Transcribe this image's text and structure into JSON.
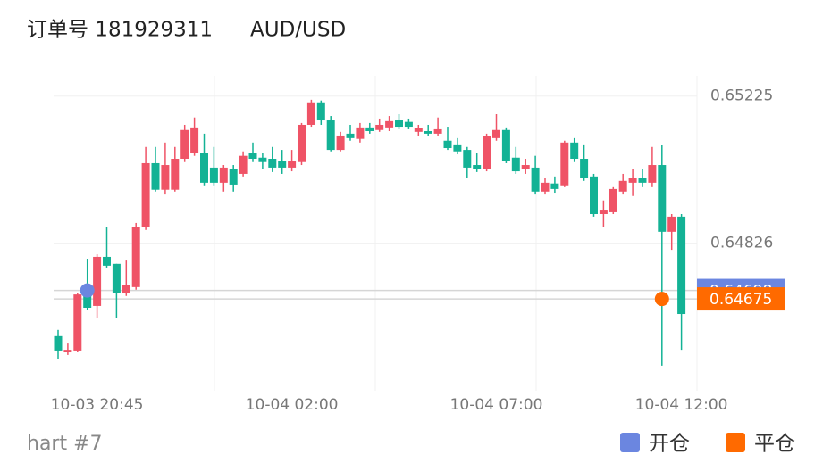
{
  "chart_data": {
    "type": "candlestick",
    "title": "订单号 181929311",
    "symbol": "AUD/USD",
    "footer": "hart #7",
    "categories": [
      null,
      null,
      null,
      null,
      "10-03 20:45",
      null,
      null,
      null,
      null,
      null,
      null,
      null,
      null,
      null,
      null,
      null,
      null,
      null,
      null,
      null,
      null,
      null,
      null,
      null,
      "10-04 02:00",
      null,
      null,
      null,
      null,
      null,
      null,
      null,
      null,
      null,
      null,
      null,
      null,
      null,
      null,
      null,
      null,
      null,
      null,
      null,
      null,
      "10-04 07:00",
      null,
      null,
      null,
      null,
      null,
      null,
      null,
      null,
      null,
      null,
      null,
      null,
      null,
      null,
      null,
      null,
      null,
      null,
      "10-04 12:00"
    ],
    "open": [
      0.64574,
      0.6453,
      0.64535,
      0.64687,
      0.64656,
      0.64789,
      0.6477,
      0.64692,
      0.64707,
      0.64869,
      0.65043,
      0.64971,
      0.64971,
      0.65055,
      0.6507,
      0.6507,
      0.65031,
      0.6499,
      0.65026,
      0.65014,
      0.6507,
      0.65058,
      0.65055,
      0.6505,
      0.65031,
      0.65046,
      0.65147,
      0.65208,
      0.65159,
      0.65079,
      0.65123,
      0.65109,
      0.6514,
      0.65133,
      0.6514,
      0.65159,
      0.65155,
      0.65128,
      0.6513,
      0.65123,
      0.65104,
      0.65094,
      0.65079,
      0.65038,
      0.65026,
      0.65111,
      0.65133,
      0.65058,
      0.65026,
      0.65031,
      0.64966,
      0.64988,
      0.64983,
      0.65099,
      0.65055,
      0.65007,
      0.64905,
      0.6491,
      0.64966,
      0.6499,
      0.65002,
      0.6499,
      0.65038,
      0.64857,
      0.64898
    ],
    "high": [
      0.64591,
      0.64554,
      0.64692,
      0.64784,
      0.64796,
      0.64869,
      0.6477,
      0.64779,
      0.64881,
      0.65087,
      0.65087,
      0.65099,
      0.65087,
      0.65147,
      0.65167,
      0.65123,
      0.65087,
      0.65038,
      0.65038,
      0.65075,
      0.65099,
      0.6507,
      0.65087,
      0.65079,
      0.65079,
      0.65152,
      0.65215,
      0.65213,
      0.65171,
      0.65128,
      0.65147,
      0.65152,
      0.65152,
      0.65164,
      0.65171,
      0.65176,
      0.65164,
      0.65147,
      0.65147,
      0.65167,
      0.65142,
      0.65111,
      0.65087,
      0.6507,
      0.65123,
      0.65176,
      0.6514,
      0.65087,
      0.65055,
      0.65063,
      0.65002,
      0.65007,
      0.65104,
      0.65111,
      0.65094,
      0.65014,
      0.64942,
      0.64978,
      0.65014,
      0.65026,
      0.65026,
      0.65087,
      0.65092,
      0.64905,
      0.64905
    ],
    "low": [
      0.64511,
      0.64523,
      0.6453,
      0.64644,
      0.64622,
      0.6476,
      0.64622,
      0.64683,
      0.647,
      0.64862,
      0.64966,
      0.64958,
      0.64966,
      0.65046,
      0.65063,
      0.64983,
      0.64983,
      0.64966,
      0.64966,
      0.65007,
      0.65046,
      0.65026,
      0.65019,
      0.65014,
      0.65021,
      0.65038,
      0.65142,
      0.65147,
      0.65075,
      0.65075,
      0.65104,
      0.65099,
      0.65123,
      0.65128,
      0.6513,
      0.65135,
      0.65135,
      0.65118,
      0.65118,
      0.65118,
      0.65079,
      0.65067,
      0.65002,
      0.65019,
      0.65021,
      0.65104,
      0.65043,
      0.65014,
      0.65014,
      0.64958,
      0.64958,
      0.64963,
      0.64978,
      0.65046,
      0.64995,
      0.64898,
      0.64869,
      0.64905,
      0.64958,
      0.64954,
      0.64978,
      0.64978,
      0.64494,
      0.64808,
      0.64537
    ],
    "close": [
      0.64535,
      0.64537,
      0.64687,
      0.64651,
      0.64789,
      0.64765,
      0.64692,
      0.64712,
      0.64869,
      0.65043,
      0.64971,
      0.65038,
      0.65055,
      0.65133,
      0.6514,
      0.6499,
      0.6499,
      0.65031,
      0.64985,
      0.65063,
      0.65055,
      0.65046,
      0.65031,
      0.65031,
      0.6505,
      0.65147,
      0.65208,
      0.65159,
      0.65079,
      0.65118,
      0.65111,
      0.6514,
      0.6513,
      0.65147,
      0.65157,
      0.65142,
      0.65142,
      0.65138,
      0.65123,
      0.65135,
      0.65084,
      0.65075,
      0.65031,
      0.65026,
      0.65116,
      0.65133,
      0.6505,
      0.65021,
      0.65038,
      0.64966,
      0.6499,
      0.64973,
      0.65099,
      0.65055,
      0.65002,
      0.64905,
      0.64917,
      0.64973,
      0.64995,
      0.65002,
      0.6499,
      0.65038,
      0.64857,
      0.64898,
      0.64634
    ],
    "up_color": "#ef5366",
    "down_color": "#13b295",
    "ylim": [
      0.64426,
      0.6528
    ],
    "yticks": [
      0.65225,
      0.64826
    ],
    "open_trade": {
      "label": "开仓",
      "price": 0.64698,
      "color": "#6b86e0"
    },
    "close_trade": {
      "label": "平仓",
      "price": 0.64675,
      "color": "#ff6a00"
    }
  }
}
